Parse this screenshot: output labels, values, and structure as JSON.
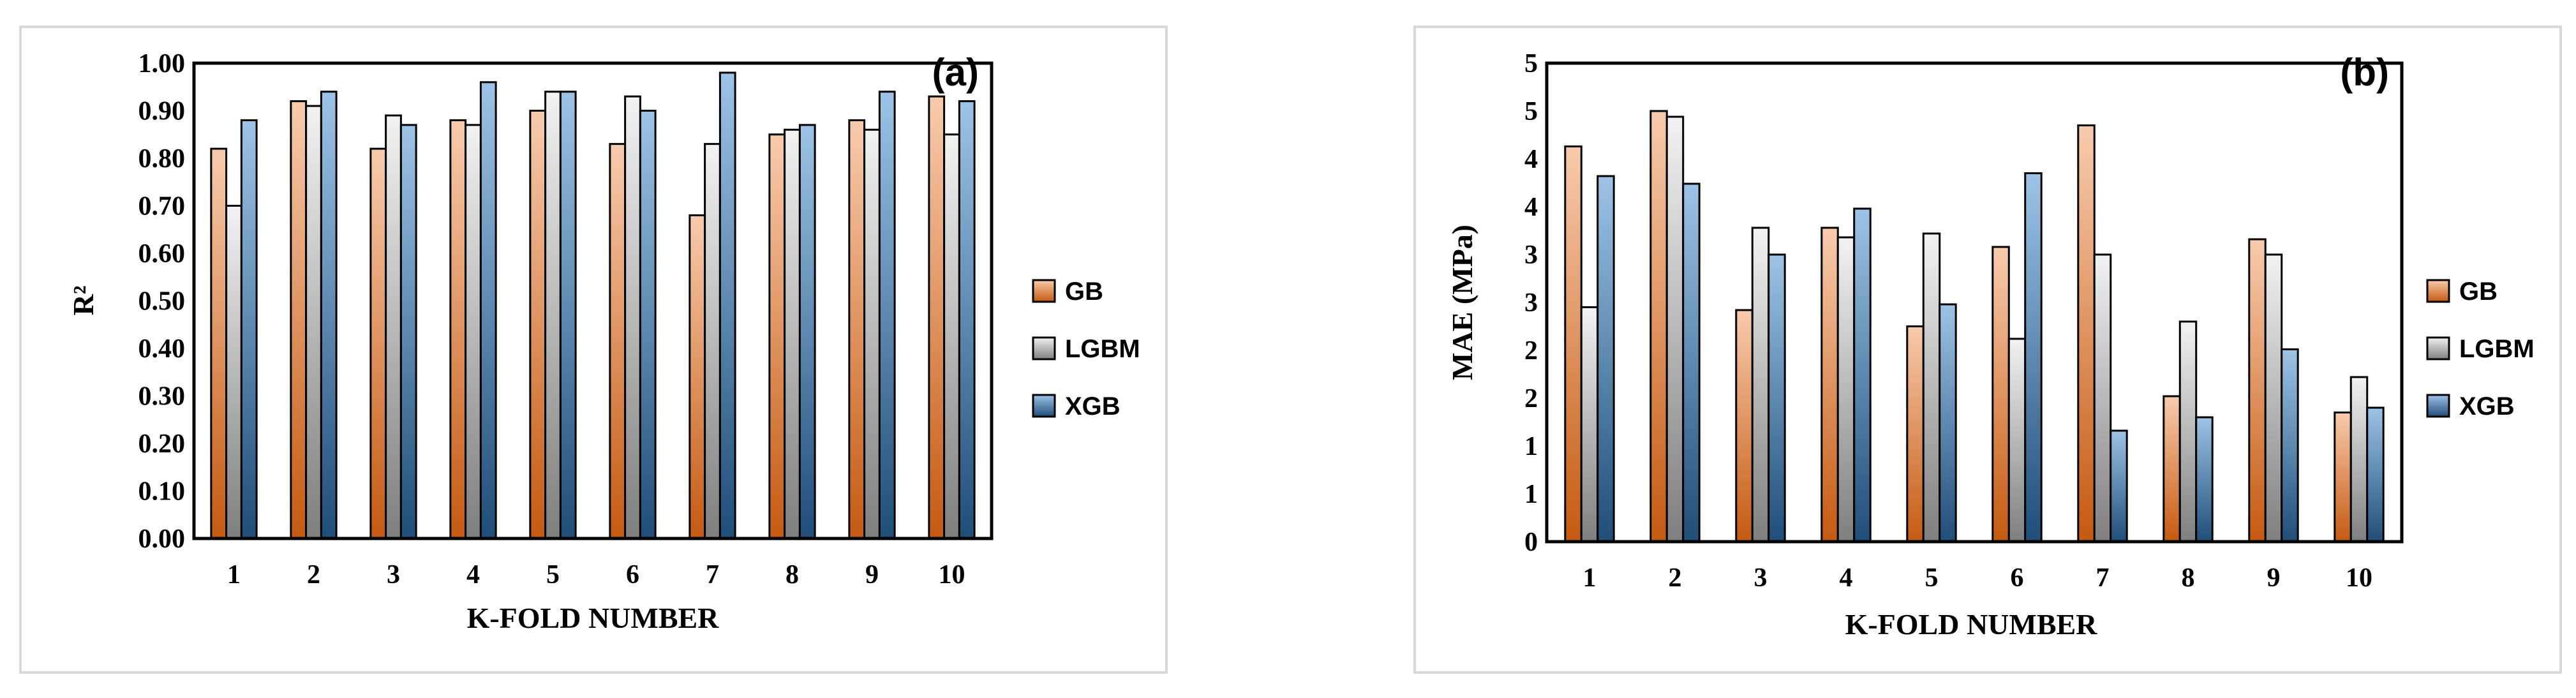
{
  "chart_data": [
    {
      "type": "bar",
      "panel_label": "(a)",
      "xlabel": "K-FOLD NUMBER",
      "ylabel": "R²",
      "ylim": [
        0,
        1
      ],
      "ytick_labels": [
        "0.00",
        "0.10",
        "0.20",
        "0.30",
        "0.40",
        "0.50",
        "0.60",
        "0.70",
        "0.80",
        "0.90",
        "1.00"
      ],
      "categories": [
        "1",
        "2",
        "3",
        "4",
        "5",
        "6",
        "7",
        "8",
        "9",
        "10"
      ],
      "series": [
        {
          "name": "GB",
          "values": [
            0.82,
            0.92,
            0.82,
            0.88,
            0.9,
            0.83,
            0.68,
            0.85,
            0.88,
            0.93
          ]
        },
        {
          "name": "LGBM",
          "values": [
            0.7,
            0.91,
            0.89,
            0.87,
            0.94,
            0.93,
            0.83,
            0.86,
            0.86,
            0.85
          ]
        },
        {
          "name": "XGB",
          "values": [
            0.88,
            0.94,
            0.87,
            0.96,
            0.94,
            0.9,
            0.98,
            0.87,
            0.94,
            0.92
          ]
        }
      ],
      "legend_position": "right",
      "grid": false
    },
    {
      "type": "bar",
      "panel_label": "(b)",
      "xlabel": "K-FOLD NUMBER",
      "ylabel": "MAE (MPa)",
      "ylim": [
        0,
        5
      ],
      "ytick_labels": [
        "0",
        "1",
        "1",
        "2",
        "2",
        "3",
        "3",
        "4",
        "4",
        "5",
        "5"
      ],
      "categories": [
        "1",
        "2",
        "3",
        "4",
        "5",
        "6",
        "7",
        "8",
        "9",
        "10"
      ],
      "series": [
        {
          "name": "GB",
          "values": [
            4.13,
            4.5,
            2.42,
            3.28,
            2.25,
            3.08,
            4.35,
            1.52,
            3.16,
            1.35
          ]
        },
        {
          "name": "LGBM",
          "values": [
            2.45,
            4.44,
            3.28,
            3.18,
            3.22,
            2.12,
            3.0,
            2.3,
            3.0,
            1.72
          ]
        },
        {
          "name": "XGB",
          "values": [
            3.82,
            3.74,
            3.0,
            3.48,
            2.48,
            3.85,
            1.16,
            1.3,
            2.01,
            1.4
          ]
        }
      ],
      "legend_position": "right",
      "grid": false
    }
  ],
  "colors": {
    "GB": {
      "dark": "#c55a11",
      "light": "#f8cbad"
    },
    "LGBM": {
      "dark": "#7f7f7f",
      "light": "#f2f2f2"
    },
    "XGB": {
      "dark": "#1f4e79",
      "light": "#9dc3e6"
    }
  }
}
